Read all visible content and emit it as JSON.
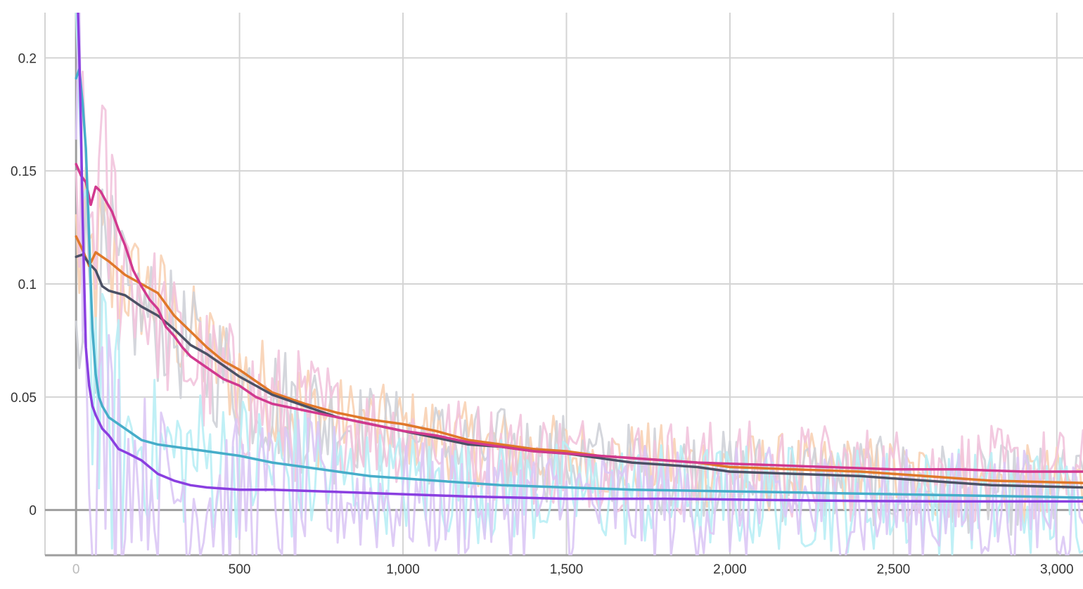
{
  "chart_data": {
    "type": "line",
    "xlim": [
      -95,
      3080
    ],
    "ylim": [
      -0.02,
      0.22
    ],
    "grid": true,
    "x_ticks": [
      {
        "value": 0,
        "label": "0"
      },
      {
        "value": 500,
        "label": "500"
      },
      {
        "value": 1000,
        "label": "1,000"
      },
      {
        "value": 1500,
        "label": "1,500"
      },
      {
        "value": 2000,
        "label": "2,000"
      },
      {
        "value": 2500,
        "label": "2,500"
      },
      {
        "value": 3000,
        "label": "3,000"
      }
    ],
    "y_ticks": [
      {
        "value": 0,
        "label": "0"
      },
      {
        "value": 0.05,
        "label": "0.05"
      },
      {
        "value": 0.1,
        "label": "0.1"
      },
      {
        "value": 0.15,
        "label": "0.15"
      },
      {
        "value": 0.2,
        "label": "0.2"
      }
    ],
    "series": [
      {
        "color": "#e0782a",
        "raw_color": "#f8d2b4",
        "x": [
          0,
          20,
          40,
          60,
          80,
          100,
          150,
          200,
          250,
          300,
          350,
          400,
          450,
          500,
          600,
          700,
          800,
          900,
          1000,
          1100,
          1200,
          1300,
          1400,
          1500,
          1600,
          1700,
          1800,
          1900,
          2000,
          2200,
          2400,
          2600,
          2800,
          3080
        ],
        "y": [
          0.121,
          0.115,
          0.108,
          0.114,
          0.112,
          0.11,
          0.104,
          0.1,
          0.096,
          0.086,
          0.079,
          0.072,
          0.066,
          0.062,
          0.052,
          0.047,
          0.043,
          0.04,
          0.038,
          0.035,
          0.031,
          0.029,
          0.027,
          0.026,
          0.024,
          0.023,
          0.022,
          0.021,
          0.019,
          0.018,
          0.017,
          0.015,
          0.013,
          0.012
        ]
      },
      {
        "color": "#4b5165",
        "raw_color": "#cfd2d8",
        "x": [
          0,
          20,
          40,
          60,
          80,
          100,
          150,
          200,
          250,
          300,
          350,
          400,
          450,
          500,
          600,
          700,
          800,
          900,
          1000,
          1100,
          1200,
          1300,
          1400,
          1500,
          1600,
          1700,
          1800,
          1900,
          2000,
          2200,
          2400,
          2600,
          2800,
          3080
        ],
        "y": [
          0.112,
          0.113,
          0.109,
          0.106,
          0.099,
          0.097,
          0.095,
          0.09,
          0.086,
          0.08,
          0.073,
          0.069,
          0.064,
          0.059,
          0.051,
          0.046,
          0.041,
          0.038,
          0.035,
          0.032,
          0.029,
          0.028,
          0.026,
          0.025,
          0.023,
          0.021,
          0.02,
          0.019,
          0.017,
          0.016,
          0.015,
          0.013,
          0.011,
          0.01
        ]
      },
      {
        "color": "#d1398f",
        "raw_color": "#f2c4dd",
        "x": [
          0,
          15,
          30,
          45,
          60,
          75,
          90,
          110,
          130,
          150,
          175,
          200,
          225,
          250,
          275,
          300,
          325,
          350,
          400,
          450,
          500,
          550,
          600,
          700,
          800,
          900,
          1000,
          1100,
          1200,
          1300,
          1400,
          1500,
          1700,
          1900,
          2100,
          2300,
          2500,
          2700,
          2900,
          3080
        ],
        "y": [
          0.153,
          0.148,
          0.145,
          0.135,
          0.143,
          0.141,
          0.137,
          0.132,
          0.124,
          0.117,
          0.106,
          0.099,
          0.093,
          0.089,
          0.081,
          0.077,
          0.072,
          0.068,
          0.063,
          0.058,
          0.055,
          0.05,
          0.047,
          0.044,
          0.041,
          0.038,
          0.035,
          0.033,
          0.03,
          0.028,
          0.026,
          0.025,
          0.023,
          0.021,
          0.02,
          0.019,
          0.018,
          0.018,
          0.017,
          0.017
        ]
      },
      {
        "color": "#46adc9",
        "raw_color": "#b9eef5",
        "x": [
          0,
          10,
          20,
          30,
          40,
          50,
          60,
          70,
          80,
          100,
          130,
          160,
          200,
          250,
          300,
          400,
          500,
          600,
          700,
          800,
          900,
          1000,
          1100,
          1200,
          1300,
          1400,
          1500,
          1700,
          1900,
          2100,
          2300,
          2500,
          2700,
          2900,
          3080
        ],
        "y": [
          0.191,
          0.195,
          0.18,
          0.16,
          0.12,
          0.08,
          0.06,
          0.05,
          0.046,
          0.041,
          0.038,
          0.035,
          0.031,
          0.029,
          0.028,
          0.026,
          0.024,
          0.021,
          0.019,
          0.017,
          0.015,
          0.014,
          0.013,
          0.012,
          0.011,
          0.0105,
          0.01,
          0.009,
          0.0085,
          0.008,
          0.0075,
          0.007,
          0.0065,
          0.006,
          0.0055
        ]
      },
      {
        "color": "#8a3fe0",
        "raw_color": "#dcc8f5",
        "x": [
          0,
          5,
          10,
          15,
          20,
          25,
          30,
          40,
          50,
          60,
          70,
          80,
          100,
          130,
          160,
          200,
          250,
          300,
          350,
          400,
          500,
          600,
          800,
          1000,
          1200,
          1500,
          1800,
          2100,
          2400,
          2700,
          3080
        ],
        "y": [
          0.23,
          0.225,
          0.2,
          0.17,
          0.13,
          0.1,
          0.072,
          0.055,
          0.046,
          0.042,
          0.039,
          0.036,
          0.033,
          0.027,
          0.025,
          0.022,
          0.016,
          0.013,
          0.011,
          0.01,
          0.009,
          0.009,
          0.008,
          0.007,
          0.006,
          0.005,
          0.005,
          0.0045,
          0.004,
          0.0038,
          0.0038
        ]
      }
    ]
  }
}
